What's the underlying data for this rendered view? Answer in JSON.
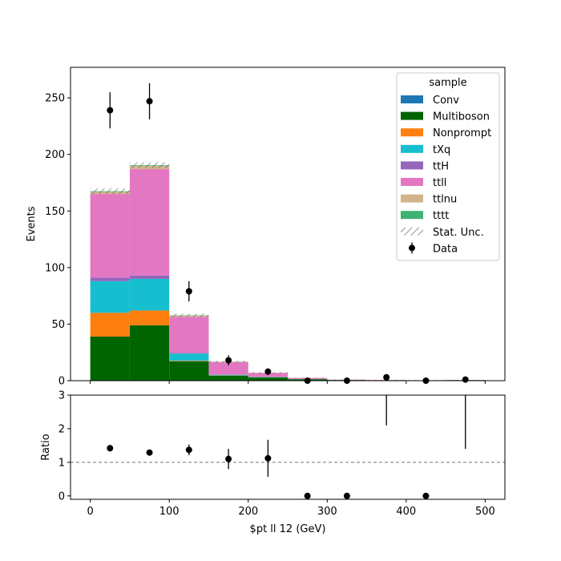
{
  "chart_data": [
    {
      "type": "bar",
      "stacked": true,
      "panel": "main",
      "bin_edges": [
        0,
        50,
        100,
        150,
        200,
        250,
        300,
        350,
        400,
        450,
        500
      ],
      "series": [
        {
          "name": "Conv",
          "color": "#1f77b4",
          "values": [
            0,
            0,
            0,
            0,
            0,
            0,
            0,
            0,
            0,
            0
          ]
        },
        {
          "name": "Multiboson",
          "color": "#006400",
          "values": [
            39,
            49,
            17,
            4.5,
            3,
            1.3,
            0.6,
            0.4,
            0.3,
            0.5
          ]
        },
        {
          "name": "Nonprompt",
          "color": "#ff7f0e",
          "values": [
            21,
            13,
            0.5,
            0.2,
            0,
            0,
            0,
            0,
            0,
            0
          ]
        },
        {
          "name": "tXq",
          "color": "#17becf",
          "values": [
            28,
            28,
            6.5,
            0.5,
            0.3,
            0.1,
            0,
            0,
            0,
            0
          ]
        },
        {
          "name": "ttH",
          "color": "#9467bd",
          "values": [
            3,
            3,
            0.5,
            0.2,
            0,
            0,
            0,
            0,
            0,
            0
          ]
        },
        {
          "name": "ttll",
          "color": "#e377c2",
          "values": [
            74,
            94,
            32,
            11,
            3.5,
            1,
            0.3,
            0.2,
            0.1,
            0
          ]
        },
        {
          "name": "ttlnu",
          "color": "#d2b48c",
          "values": [
            2,
            3,
            1,
            0.3,
            0.2,
            0.1,
            0,
            0,
            0,
            0
          ]
        },
        {
          "name": "tttt",
          "color": "#3cb371",
          "values": [
            0.5,
            0.5,
            0.3,
            0.1,
            0,
            0,
            0,
            0,
            0,
            0
          ]
        }
      ],
      "stat_unc": [
        2.5,
        2.5,
        1.5,
        0.8,
        0.6,
        0.3,
        0.2,
        0.2,
        0.2,
        0.2
      ],
      "data": {
        "name": "Data",
        "x": [
          25,
          75,
          125,
          175,
          225,
          275,
          325,
          375,
          425,
          475
        ],
        "y": [
          239,
          247,
          79,
          18,
          8,
          0,
          0,
          3,
          0,
          1
        ],
        "err": [
          16,
          16,
          9,
          4.5,
          3,
          0,
          0,
          1.8,
          0,
          1
        ]
      },
      "xlim": [
        -25,
        525
      ],
      "ylim": [
        0,
        277
      ],
      "yticks": [
        0,
        50,
        100,
        150,
        200,
        250
      ],
      "ylabel": "Events",
      "legend": {
        "title": "sample",
        "position": "top-right",
        "stat_label": "Stat. Unc."
      }
    },
    {
      "type": "scatter",
      "panel": "ratio",
      "x": [
        25,
        75,
        125,
        175,
        225,
        275,
        325,
        375,
        425,
        475
      ],
      "y": [
        1.42,
        1.29,
        1.37,
        1.1,
        1.12,
        0,
        0,
        null,
        0,
        null
      ],
      "yerr": [
        0.1,
        0.09,
        0.16,
        0.3,
        0.55,
        0,
        0,
        0,
        0,
        0
      ],
      "bars": [
        {
          "x": 375,
          "low": 2.1,
          "high": 3.0
        },
        {
          "x": 475,
          "low": 1.4,
          "high": 3.0
        }
      ],
      "reference_line": 1,
      "xlim": [
        -25,
        525
      ],
      "ylim": [
        -0.1,
        3
      ],
      "yticks": [
        0,
        1,
        2,
        3
      ],
      "xticks": [
        0,
        100,
        200,
        300,
        400,
        500
      ],
      "ylabel": "Ratio",
      "xlabel": "$pt ll 12 (GeV)"
    }
  ]
}
